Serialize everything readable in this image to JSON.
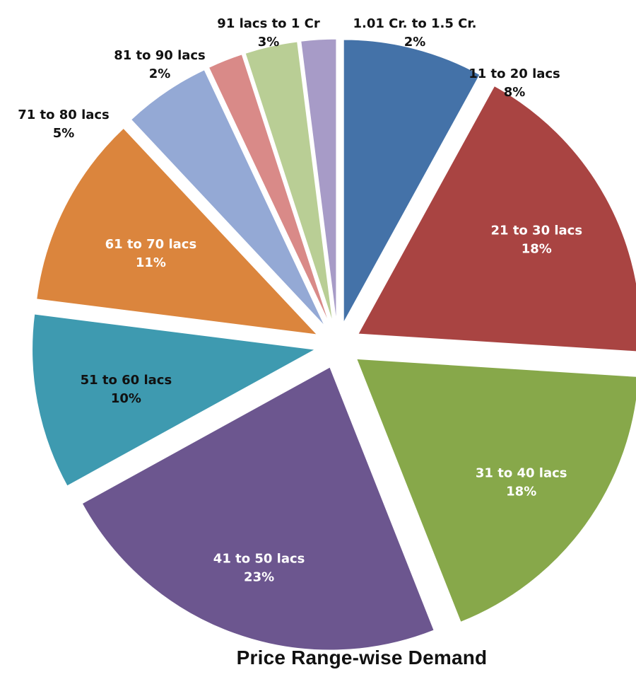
{
  "chart_data": {
    "type": "pie",
    "title": "Price Range-wise Demand",
    "exploded": true,
    "legend": "none",
    "slices": [
      {
        "label": "11 to 20 lacs",
        "value": 8,
        "percent_label": "8%",
        "color": "#4472A8"
      },
      {
        "label": "21 to 30 lacs",
        "value": 18,
        "percent_label": "18%",
        "color": "#A94442"
      },
      {
        "label": "31 to 40 lacs",
        "value": 18,
        "percent_label": "18%",
        "color": "#87A84A"
      },
      {
        "label": "41 to 50 lacs",
        "value": 23,
        "percent_label": "23%",
        "color": "#6C568F"
      },
      {
        "label": "51 to 60 lacs",
        "value": 10,
        "percent_label": "10%",
        "color": "#3E9AB0"
      },
      {
        "label": "61 to 70 lacs",
        "value": 11,
        "percent_label": "11%",
        "color": "#DB853D"
      },
      {
        "label": "71 to 80 lacs",
        "value": 5,
        "percent_label": "5%",
        "color": "#94A9D5"
      },
      {
        "label": "81 to 90 lacs",
        "value": 2,
        "percent_label": "2%",
        "color": "#D98A88"
      },
      {
        "label": "91 lacs to 1 Cr",
        "value": 3,
        "percent_label": "3%",
        "color": "#B9CE95"
      },
      {
        "label": "1.01 Cr. to 1.5 Cr.",
        "value": 2,
        "percent_label": "2%",
        "color": "#A79BC7"
      }
    ]
  }
}
